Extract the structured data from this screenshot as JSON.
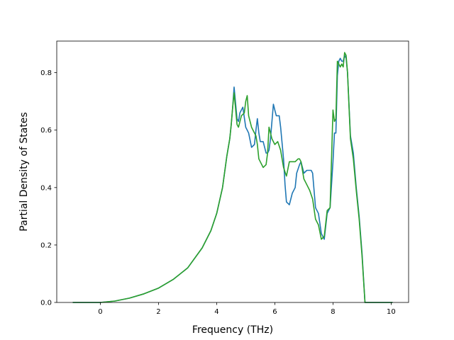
{
  "chart_data": {
    "type": "line",
    "title": "",
    "xlabel": "Frequency (THz)",
    "ylabel": "Partial Density of States",
    "xlim": [
      -1.5,
      10.6
    ],
    "ylim": [
      0.0,
      0.91
    ],
    "xticks": [
      0,
      2,
      4,
      6,
      8,
      10
    ],
    "xtick_labels": [
      "0",
      "2",
      "4",
      "6",
      "8",
      "10"
    ],
    "yticks": [
      0.0,
      0.2,
      0.4,
      0.6,
      0.8
    ],
    "ytick_labels": [
      "0.0",
      "0.2",
      "0.4",
      "0.6",
      "0.8"
    ],
    "grid": false,
    "legend": "none",
    "series": [
      {
        "color": "#1f77b4",
        "x": [
          -0.95,
          0.0,
          0.5,
          1.0,
          1.5,
          2.0,
          2.5,
          3.0,
          3.5,
          3.8,
          4.0,
          4.2,
          4.35,
          4.45,
          4.5,
          4.55,
          4.6,
          4.7,
          4.75,
          4.8,
          4.9,
          5.0,
          5.05,
          5.1,
          5.2,
          5.3,
          5.35,
          5.4,
          5.45,
          5.5,
          5.6,
          5.7,
          5.75,
          5.8,
          5.85,
          5.95,
          6.0,
          6.05,
          6.1,
          6.15,
          6.2,
          6.3,
          6.35,
          6.4,
          6.5,
          6.6,
          6.7,
          6.75,
          6.85,
          6.9,
          7.0,
          7.1,
          7.2,
          7.25,
          7.3,
          7.4,
          7.5,
          7.6,
          7.7,
          7.8,
          7.9,
          8.0,
          8.05,
          8.1,
          8.15,
          8.2,
          8.25,
          8.3,
          8.35,
          8.4,
          8.45,
          8.5,
          8.6,
          8.7,
          8.8,
          8.9,
          9.0,
          9.1,
          9.15,
          9.3,
          10.05
        ],
        "values": [
          0.0,
          0.0,
          0.005,
          0.015,
          0.03,
          0.05,
          0.08,
          0.12,
          0.19,
          0.25,
          0.31,
          0.4,
          0.51,
          0.57,
          0.62,
          0.68,
          0.75,
          0.64,
          0.63,
          0.66,
          0.68,
          0.61,
          0.6,
          0.59,
          0.54,
          0.55,
          0.6,
          0.64,
          0.59,
          0.56,
          0.56,
          0.52,
          0.52,
          0.53,
          0.57,
          0.69,
          0.67,
          0.65,
          0.65,
          0.65,
          0.61,
          0.5,
          0.41,
          0.35,
          0.34,
          0.38,
          0.4,
          0.45,
          0.48,
          0.49,
          0.45,
          0.46,
          0.46,
          0.46,
          0.45,
          0.33,
          0.31,
          0.24,
          0.22,
          0.31,
          0.33,
          0.49,
          0.59,
          0.59,
          0.79,
          0.84,
          0.85,
          0.84,
          0.84,
          0.86,
          0.85,
          0.8,
          0.58,
          0.52,
          0.4,
          0.3,
          0.17,
          0.0,
          0.0,
          0.0,
          0.0
        ]
      },
      {
        "color": "#2ca02c",
        "x": [
          -0.95,
          0.0,
          0.5,
          1.0,
          1.5,
          2.0,
          2.5,
          3.0,
          3.5,
          3.8,
          4.0,
          4.2,
          4.35,
          4.45,
          4.5,
          4.55,
          4.6,
          4.7,
          4.75,
          4.85,
          4.95,
          5.0,
          5.05,
          5.1,
          5.2,
          5.3,
          5.35,
          5.4,
          5.45,
          5.5,
          5.6,
          5.7,
          5.75,
          5.8,
          5.85,
          5.9,
          6.0,
          6.1,
          6.2,
          6.3,
          6.4,
          6.5,
          6.55,
          6.6,
          6.7,
          6.8,
          6.85,
          6.9,
          7.0,
          7.1,
          7.2,
          7.3,
          7.4,
          7.5,
          7.6,
          7.7,
          7.8,
          7.9,
          8.0,
          8.05,
          8.1,
          8.15,
          8.2,
          8.25,
          8.3,
          8.35,
          8.4,
          8.45,
          8.5,
          8.6,
          8.7,
          8.8,
          8.9,
          9.0,
          9.1,
          9.15,
          9.3,
          10.05
        ],
        "values": [
          0.0,
          0.0,
          0.005,
          0.015,
          0.03,
          0.05,
          0.08,
          0.12,
          0.19,
          0.25,
          0.31,
          0.4,
          0.51,
          0.57,
          0.62,
          0.68,
          0.73,
          0.62,
          0.61,
          0.65,
          0.66,
          0.7,
          0.72,
          0.65,
          0.61,
          0.59,
          0.58,
          0.55,
          0.5,
          0.49,
          0.47,
          0.48,
          0.52,
          0.61,
          0.59,
          0.57,
          0.55,
          0.56,
          0.53,
          0.47,
          0.44,
          0.49,
          0.49,
          0.49,
          0.49,
          0.5,
          0.5,
          0.49,
          0.43,
          0.41,
          0.39,
          0.36,
          0.29,
          0.27,
          0.22,
          0.23,
          0.32,
          0.33,
          0.67,
          0.63,
          0.64,
          0.84,
          0.83,
          0.82,
          0.83,
          0.82,
          0.87,
          0.86,
          0.8,
          0.57,
          0.5,
          0.39,
          0.29,
          0.16,
          0.0,
          0.0,
          0.0,
          0.0
        ]
      }
    ]
  }
}
